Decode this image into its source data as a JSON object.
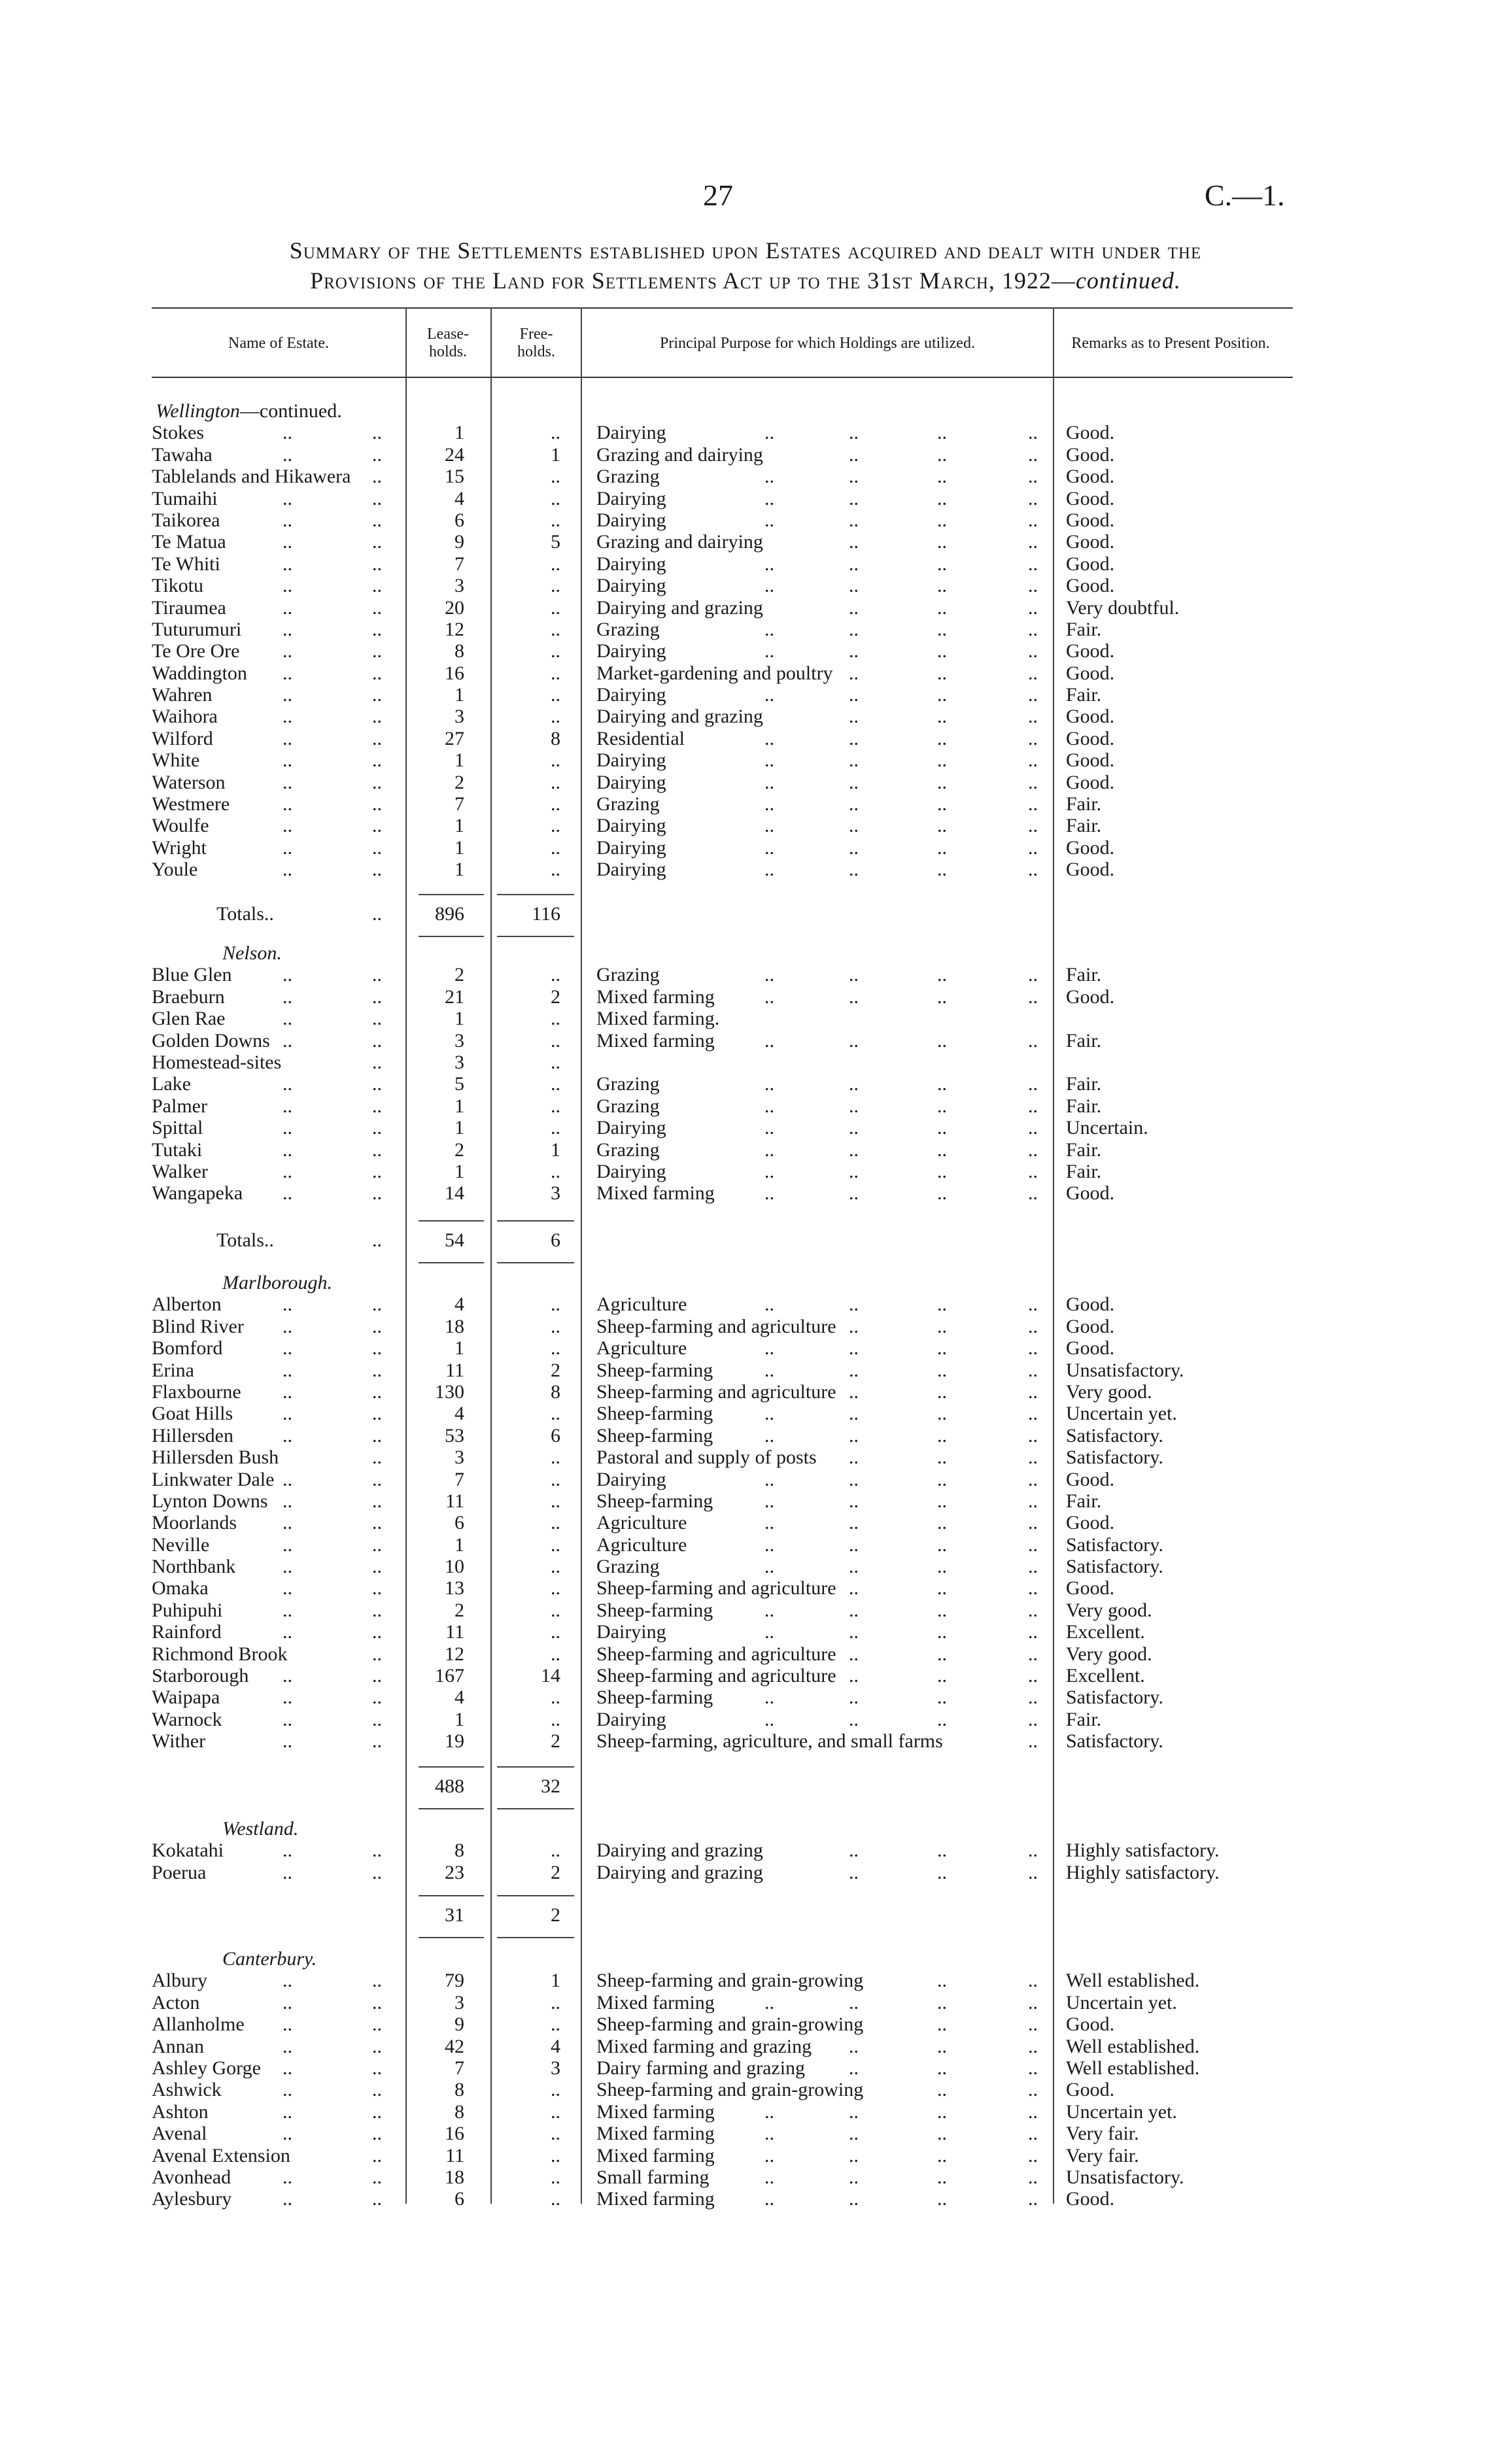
{
  "page_number": "27",
  "doc_ref": "C.—1.",
  "title_line1": "Summary of the Settlements established upon Estates acquired and dealt with under the",
  "title_line2_main": "Provisions of the Land for Settlements Act up to the 31st March, 1922—",
  "title_line2_italic": "continued.",
  "leader": "..",
  "headers": {
    "name": "Name of Estate.",
    "lease": "Lease-holds.",
    "free": "Free-holds.",
    "purpose": "Principal Purpose for which Holdings are utilized.",
    "remarks": "Remarks as to Present Position."
  },
  "sections": [
    {
      "heading": "Wellington",
      "heading_suffix": "—continued.",
      "rows": [
        [
          "Stokes",
          "1",
          "..",
          "Dairying",
          "Good."
        ],
        [
          "Tawaha",
          "24",
          "1",
          "Grazing and dairying",
          "Good."
        ],
        [
          "Tablelands and Hikawera",
          "15",
          "..",
          "Grazing",
          "Good."
        ],
        [
          "Tumaihi",
          "4",
          "..",
          "Dairying",
          "Good."
        ],
        [
          "Taikorea",
          "6",
          "..",
          "Dairying",
          "Good."
        ],
        [
          "Te Matua",
          "9",
          "5",
          "Grazing and dairying",
          "Good."
        ],
        [
          "Te Whiti",
          "7",
          "..",
          "Dairying",
          "Good."
        ],
        [
          "Tikotu",
          "3",
          "..",
          "Dairying",
          "Good."
        ],
        [
          "Tiraumea",
          "20",
          "..",
          "Dairying and grazing",
          "Very doubtful."
        ],
        [
          "Tuturumuri",
          "12",
          "..",
          "Grazing",
          "Fair."
        ],
        [
          "Te Ore Ore",
          "8",
          "..",
          "Dairying",
          "Good."
        ],
        [
          "Waddington",
          "16",
          "..",
          "Market-gardening and poultry",
          "Good."
        ],
        [
          "Wahren",
          "1",
          "..",
          "Dairying",
          "Fair."
        ],
        [
          "Waihora",
          "3",
          "..",
          "Dairying and grazing",
          "Good."
        ],
        [
          "Wilford",
          "27",
          "8",
          "Residential",
          "Good."
        ],
        [
          "White",
          "1",
          "..",
          "Dairying",
          "Good."
        ],
        [
          "Waterson",
          "2",
          "..",
          "Dairying",
          "Good."
        ],
        [
          "Westmere",
          "7",
          "..",
          "Grazing",
          "Fair."
        ],
        [
          "Woulfe",
          "1",
          "..",
          "Dairying",
          "Fair."
        ],
        [
          "Wright",
          "1",
          "..",
          "Dairying",
          "Good."
        ],
        [
          "Youle",
          "1",
          "..",
          "Dairying",
          "Good."
        ]
      ],
      "totals": {
        "label": "Totals..",
        "lease": "896",
        "free": "116"
      }
    },
    {
      "heading": "Nelson.",
      "heading_suffix": "",
      "rows": [
        [
          "Blue Glen",
          "2",
          "..",
          "Grazing",
          "Fair."
        ],
        [
          "Braeburn",
          "21",
          "2",
          "Mixed farming",
          "Good."
        ],
        [
          "Glen Rae",
          "1",
          "..",
          "Mixed farming.",
          ""
        ],
        [
          "Golden Downs",
          "3",
          "..",
          "Mixed farming",
          "Fair."
        ],
        [
          "Homestead-sites",
          "3",
          "..",
          "",
          ""
        ],
        [
          "Lake",
          "5",
          "..",
          "Grazing",
          "Fair."
        ],
        [
          "Palmer",
          "1",
          "..",
          "Grazing",
          "Fair."
        ],
        [
          "Spittal",
          "1",
          "..",
          "Dairying",
          "Uncertain."
        ],
        [
          "Tutaki",
          "2",
          "1",
          "Grazing",
          "Fair."
        ],
        [
          "Walker",
          "1",
          "..",
          "Dairying",
          "Fair."
        ],
        [
          "Wangapeka",
          "14",
          "3",
          "Mixed farming",
          "Good."
        ]
      ],
      "totals": {
        "label": "Totals..",
        "lease": "54",
        "free": "6"
      }
    },
    {
      "heading": "Marlborough.",
      "heading_suffix": "",
      "rows": [
        [
          "Alberton",
          "4",
          "..",
          "Agriculture",
          "Good."
        ],
        [
          "Blind River",
          "18",
          "..",
          "Sheep-farming and agriculture",
          "Good."
        ],
        [
          "Bomford",
          "1",
          "..",
          "Agriculture",
          "Good."
        ],
        [
          "Erina",
          "11",
          "2",
          "Sheep-farming",
          "Unsatisfactory."
        ],
        [
          "Flaxbourne",
          "130",
          "8",
          "Sheep-farming and agriculture",
          "Very good."
        ],
        [
          "Goat Hills",
          "4",
          "..",
          "Sheep-farming",
          "Uncertain yet."
        ],
        [
          "Hillersden",
          "53",
          "6",
          "Sheep-farming",
          "Satisfactory."
        ],
        [
          "Hillersden Bush",
          "3",
          "..",
          "Pastoral and supply of posts",
          "Satisfactory."
        ],
        [
          "Linkwater Dale",
          "7",
          "..",
          "Dairying",
          "Good."
        ],
        [
          "Lynton Downs",
          "11",
          "..",
          "Sheep-farming",
          "Fair."
        ],
        [
          "Moorlands",
          "6",
          "..",
          "Agriculture",
          "Good."
        ],
        [
          "Neville",
          "1",
          "..",
          "Agriculture",
          "Satisfactory."
        ],
        [
          "Northbank",
          "10",
          "..",
          "Grazing",
          "Satisfactory."
        ],
        [
          "Omaka",
          "13",
          "..",
          "Sheep-farming and agriculture",
          "Good."
        ],
        [
          "Puhipuhi",
          "2",
          "..",
          "Sheep-farming",
          "Very good."
        ],
        [
          "Rainford",
          "11",
          "..",
          "Dairying",
          "Excellent."
        ],
        [
          "Richmond Brook",
          "12",
          "..",
          "Sheep-farming and agriculture",
          "Very good."
        ],
        [
          "Starborough",
          "167",
          "14",
          "Sheep-farming and agriculture",
          "Excellent."
        ],
        [
          "Waipapa",
          "4",
          "..",
          "Sheep-farming",
          "Satisfactory."
        ],
        [
          "Warnock",
          "1",
          "..",
          "Dairying",
          "Fair."
        ],
        [
          "Wither",
          "19",
          "2",
          "Sheep-farming, agriculture, and small farms",
          "Satisfactory."
        ]
      ],
      "totals": {
        "label": "",
        "lease": "488",
        "free": "32"
      }
    },
    {
      "heading": "Westland.",
      "heading_suffix": "",
      "rows": [
        [
          "Kokatahi",
          "8",
          "..",
          "Dairying and grazing",
          "Highly satisfactory."
        ],
        [
          "Poerua",
          "23",
          "2",
          "Dairying and grazing",
          "Highly satisfactory."
        ]
      ],
      "totals": {
        "label": "",
        "lease": "31",
        "free": "2"
      }
    },
    {
      "heading": "Canterbury.",
      "heading_suffix": "",
      "rows": [
        [
          "Albury",
          "79",
          "1",
          "Sheep-farming and grain-growing",
          "Well established."
        ],
        [
          "Acton",
          "3",
          "..",
          "Mixed farming",
          "Uncertain yet."
        ],
        [
          "Allanholme",
          "9",
          "..",
          "Sheep-farming and grain-growing",
          "Good."
        ],
        [
          "Annan",
          "42",
          "4",
          "Mixed farming and grazing",
          "Well established."
        ],
        [
          "Ashley Gorge",
          "7",
          "3",
          "Dairy farming and grazing",
          "Well established."
        ],
        [
          "Ashwick",
          "8",
          "..",
          "Sheep-farming and grain-growing",
          "Good."
        ],
        [
          "Ashton",
          "8",
          "..",
          "Mixed farming",
          "Uncertain yet."
        ],
        [
          "Avenal",
          "16",
          "..",
          "Mixed farming",
          "Very fair."
        ],
        [
          "Avenal Extension",
          "11",
          "..",
          "Mixed farming",
          "Very fair."
        ],
        [
          "Avonhead",
          "18",
          "..",
          "Small farming",
          "Unsatisfactory."
        ],
        [
          "Aylesbury",
          "6",
          "..",
          "Mixed farming",
          "Good."
        ]
      ],
      "totals": null
    }
  ]
}
